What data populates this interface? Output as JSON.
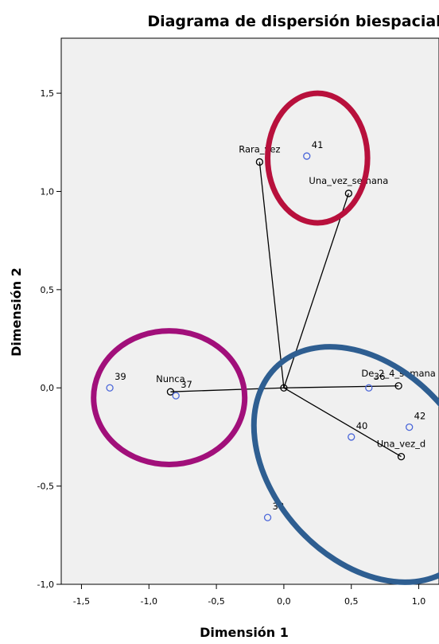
{
  "chart_data": {
    "type": "scatter",
    "title": "Diagrama de dispersión biespacial",
    "xlabel": "Dimensión 1",
    "ylabel": "Dimensión 2",
    "xlim": [
      -1.65,
      1.15
    ],
    "ylim": [
      -1.0,
      1.78
    ],
    "x_ticks": [
      -1.5,
      -1.0,
      -0.5,
      0.0,
      0.5,
      1.0
    ],
    "x_tick_labels": [
      "-1,5",
      "-1,0",
      "-0,5",
      "0,0",
      "0,5",
      "1,0"
    ],
    "y_ticks": [
      -1.0,
      -0.5,
      0.0,
      0.5,
      1.0,
      1.5
    ],
    "y_tick_labels": [
      "-1,0",
      "-0,5",
      "0,0",
      "0,5",
      "1,0",
      "1,5"
    ],
    "grid": false,
    "plot_background": "#f0f0f0",
    "origin": [
      0.0,
      0.0
    ],
    "category_points": [
      {
        "label": "Rara_vez",
        "x": -0.18,
        "y": 1.15
      },
      {
        "label": "Una_vez_semana",
        "x": 0.48,
        "y": 0.99
      },
      {
        "label": "Nunca",
        "x": -0.84,
        "y": -0.02
      },
      {
        "label": "De_2_4_semana",
        "x": 0.85,
        "y": 0.01
      },
      {
        "label": "Una_vez_d",
        "x": 0.87,
        "y": -0.35
      }
    ],
    "case_points": [
      {
        "label": "41",
        "x": 0.17,
        "y": 1.18
      },
      {
        "label": "39",
        "x": -1.29,
        "y": 0.0
      },
      {
        "label": "37",
        "x": -0.8,
        "y": -0.04
      },
      {
        "label": "36",
        "x": 0.63,
        "y": 0.0
      },
      {
        "label": "40",
        "x": 0.5,
        "y": -0.25
      },
      {
        "label": "42",
        "x": 0.93,
        "y": -0.2
      },
      {
        "label": "38",
        "x": -0.12,
        "y": -0.66
      }
    ],
    "highlight_ellipses": [
      {
        "color": "#b8103c",
        "cx": 0.25,
        "cy": 1.17,
        "rx": 0.37,
        "ry": 0.33
      },
      {
        "color": "#a10f7a",
        "cx": -0.85,
        "cy": -0.05,
        "rx": 0.56,
        "ry": 0.34
      },
      {
        "color": "#2e5e91",
        "cx": 0.62,
        "cy": -0.39,
        "rx": 0.7,
        "ry": 0.68,
        "rotate": -42
      }
    ],
    "colors": {
      "case_marker": "#4a66d9",
      "category_marker": "#000000",
      "vector_line": "#000000"
    }
  }
}
